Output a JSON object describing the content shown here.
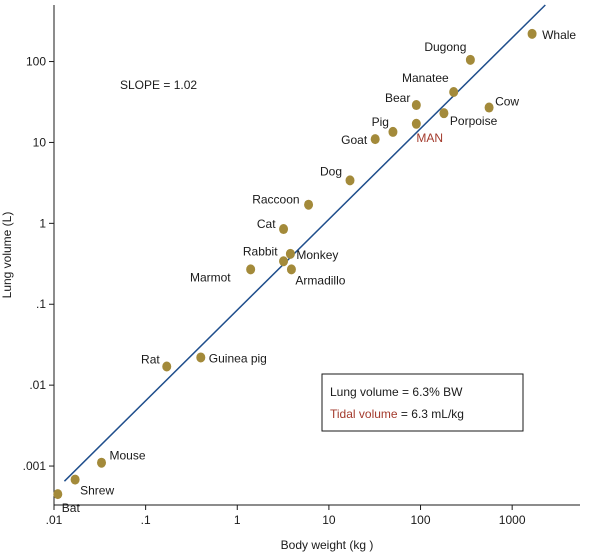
{
  "chart_data": {
    "type": "scatter",
    "xlabel": "Body weight (kg )",
    "ylabel": "Lung volume (L)",
    "xscale": "log",
    "yscale": "log",
    "xlim": [
      0.01,
      5500
    ],
    "ylim": [
      0.00033,
      500
    ],
    "xticks": [
      {
        "value": 0.01,
        "label": ".01"
      },
      {
        "value": 0.1,
        "label": ".1"
      },
      {
        "value": 1,
        "label": "1"
      },
      {
        "value": 10,
        "label": "10"
      },
      {
        "value": 100,
        "label": "100"
      },
      {
        "value": 1000,
        "label": "1000"
      }
    ],
    "yticks": [
      {
        "value": 0.001,
        "label": ".001"
      },
      {
        "value": 0.01,
        "label": ".01"
      },
      {
        "value": 0.1,
        "label": ".1"
      },
      {
        "value": 1,
        "label": "1"
      },
      {
        "value": 10,
        "label": "10"
      },
      {
        "value": 100,
        "label": "100"
      }
    ],
    "grid": false,
    "point_color": "#a38a3a",
    "line_color": "#1f4e8c",
    "highlight_color": "#a33a2c",
    "slope_annotation": "SLOPE = 1.02",
    "fit_line": {
      "x": [
        0.013,
        2300
      ],
      "y": [
        0.00065,
        500
      ]
    },
    "legend": {
      "placement": "bottom-right",
      "line1_prefix": "Lung volume",
      "line1_suffix": " = 6.3% BW",
      "line2_prefix": "Tidal volume",
      "line2_suffix": " = 6.3 mL/kg"
    },
    "points": [
      {
        "name": "Whale",
        "x": 1650,
        "y": 220
      },
      {
        "name": "Dugong",
        "x": 350,
        "y": 105
      },
      {
        "name": "Manatee",
        "x": 230,
        "y": 42
      },
      {
        "name": "Cow",
        "x": 560,
        "y": 27
      },
      {
        "name": "Bear",
        "x": 90,
        "y": 29
      },
      {
        "name": "Porpoise",
        "x": 180,
        "y": 23
      },
      {
        "name": "Pig",
        "x": 50,
        "y": 13.5
      },
      {
        "name": "MAN",
        "x": 90,
        "y": 17
      },
      {
        "name": "Goat",
        "x": 32,
        "y": 11
      },
      {
        "name": "Dog",
        "x": 17,
        "y": 3.4
      },
      {
        "name": "Raccoon",
        "x": 6,
        "y": 1.7
      },
      {
        "name": "Cat",
        "x": 3.2,
        "y": 0.85
      },
      {
        "name": "Rabbit",
        "x": 3.2,
        "y": 0.34
      },
      {
        "name": "Monkey",
        "x": 3.8,
        "y": 0.42
      },
      {
        "name": "Marmot",
        "x": 1.4,
        "y": 0.27
      },
      {
        "name": "Armadillo",
        "x": 3.9,
        "y": 0.27
      },
      {
        "name": "Rat",
        "x": 0.17,
        "y": 0.017
      },
      {
        "name": "Guinea pig",
        "x": 0.4,
        "y": 0.022
      },
      {
        "name": "Mouse",
        "x": 0.033,
        "y": 0.0011
      },
      {
        "name": "Shrew",
        "x": 0.017,
        "y": 0.00068
      },
      {
        "name": "Bat",
        "x": 0.011,
        "y": 0.00045
      }
    ]
  }
}
